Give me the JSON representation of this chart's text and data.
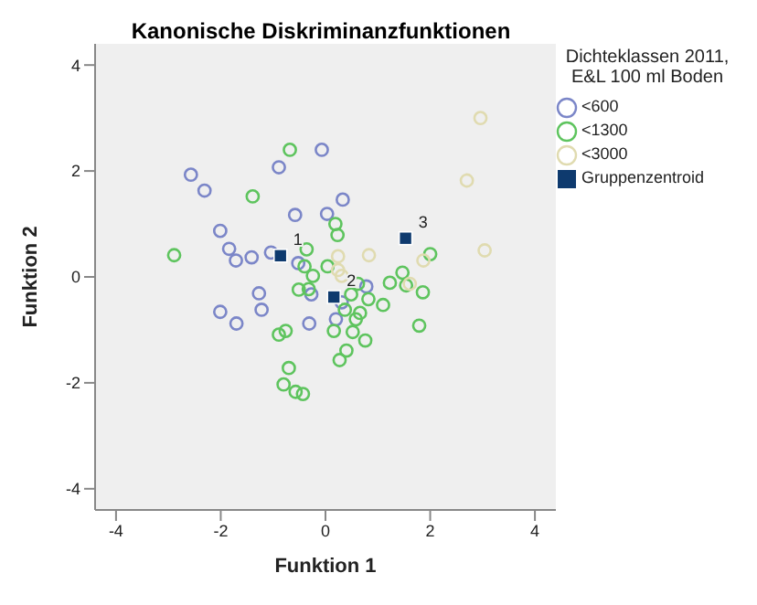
{
  "chart_data": {
    "type": "scatter",
    "title": "Kanonische Diskriminanzfunktionen",
    "xlabel": "Funktion 1",
    "ylabel": "Funktion 2",
    "legend_title": "Dichteklassen 2011, E&L 100 ml Boden",
    "legend": "right",
    "grid": false,
    "xlim": [
      -4.4,
      4.4
    ],
    "ylim": [
      -4.4,
      4.4
    ],
    "xticks": [
      -4,
      -2,
      0,
      2,
      4
    ],
    "yticks": [
      -4,
      -2,
      0,
      2,
      4
    ],
    "series": [
      {
        "name": "<600",
        "color": "#7b86c8",
        "marker": "circle",
        "x": [
          -2.57,
          -2.31,
          -0.89,
          -0.07,
          0.33,
          -0.58,
          0.03,
          -2.01,
          -1.84,
          -1.71,
          -1.41,
          -1.04,
          -0.52,
          -1.27,
          -0.27,
          0.78,
          -2.01,
          -1.22,
          -1.7,
          -0.31,
          0.2,
          0.31
        ],
        "values": [
          1.93,
          1.63,
          2.07,
          2.4,
          1.46,
          1.17,
          1.19,
          0.87,
          0.53,
          0.31,
          0.37,
          0.46,
          0.26,
          -0.31,
          -0.33,
          -0.18,
          -0.66,
          -0.62,
          -0.88,
          -0.88,
          -0.8,
          -0.48
        ]
      },
      {
        "name": "<1300",
        "color": "#5ec45e",
        "marker": "circle",
        "x": [
          -0.68,
          -1.39,
          0.19,
          0.23,
          -2.89,
          -0.36,
          -0.4,
          0.04,
          2.0,
          1.47,
          -0.24,
          0.37,
          -0.51,
          -0.32,
          0.62,
          0.49,
          0.82,
          1.23,
          1.54,
          1.86,
          1.1,
          0.66,
          0.58,
          0.16,
          0.52,
          0.76,
          1.79,
          -0.89,
          -0.76,
          0.4,
          0.27,
          -0.7,
          -0.8,
          -0.57,
          -0.43
        ],
        "values": [
          2.4,
          1.52,
          1.0,
          0.79,
          0.41,
          0.52,
          0.2,
          0.2,
          0.43,
          0.08,
          0.02,
          -0.62,
          -0.24,
          -0.23,
          -0.13,
          -0.33,
          -0.42,
          -0.11,
          -0.16,
          -0.29,
          -0.53,
          -0.68,
          -0.8,
          -1.02,
          -1.04,
          -1.2,
          -0.92,
          -1.09,
          -1.02,
          -1.39,
          -1.57,
          -1.72,
          -2.03,
          -2.17,
          -2.21
        ]
      },
      {
        "name": "<3000",
        "color": "#e0dbb0",
        "marker": "circle",
        "x": [
          2.96,
          2.7,
          3.04,
          0.83,
          0.24,
          1.87,
          0.31,
          0.24,
          1.61
        ],
        "values": [
          3.0,
          1.82,
          0.5,
          0.41,
          0.39,
          0.31,
          0.02,
          0.13,
          -0.13
        ]
      },
      {
        "name": "Gruppenzentroid",
        "color": "#0e3a6e",
        "marker": "square",
        "x": [
          -0.86,
          0.16,
          1.53
        ],
        "values": [
          0.4,
          -0.38,
          0.73
        ]
      }
    ],
    "annotations": [
      {
        "text": "1",
        "x": -0.86,
        "y": 0.4
      },
      {
        "text": "2",
        "x": 0.16,
        "y": -0.38
      },
      {
        "text": "3",
        "x": 1.53,
        "y": 0.73
      }
    ]
  }
}
